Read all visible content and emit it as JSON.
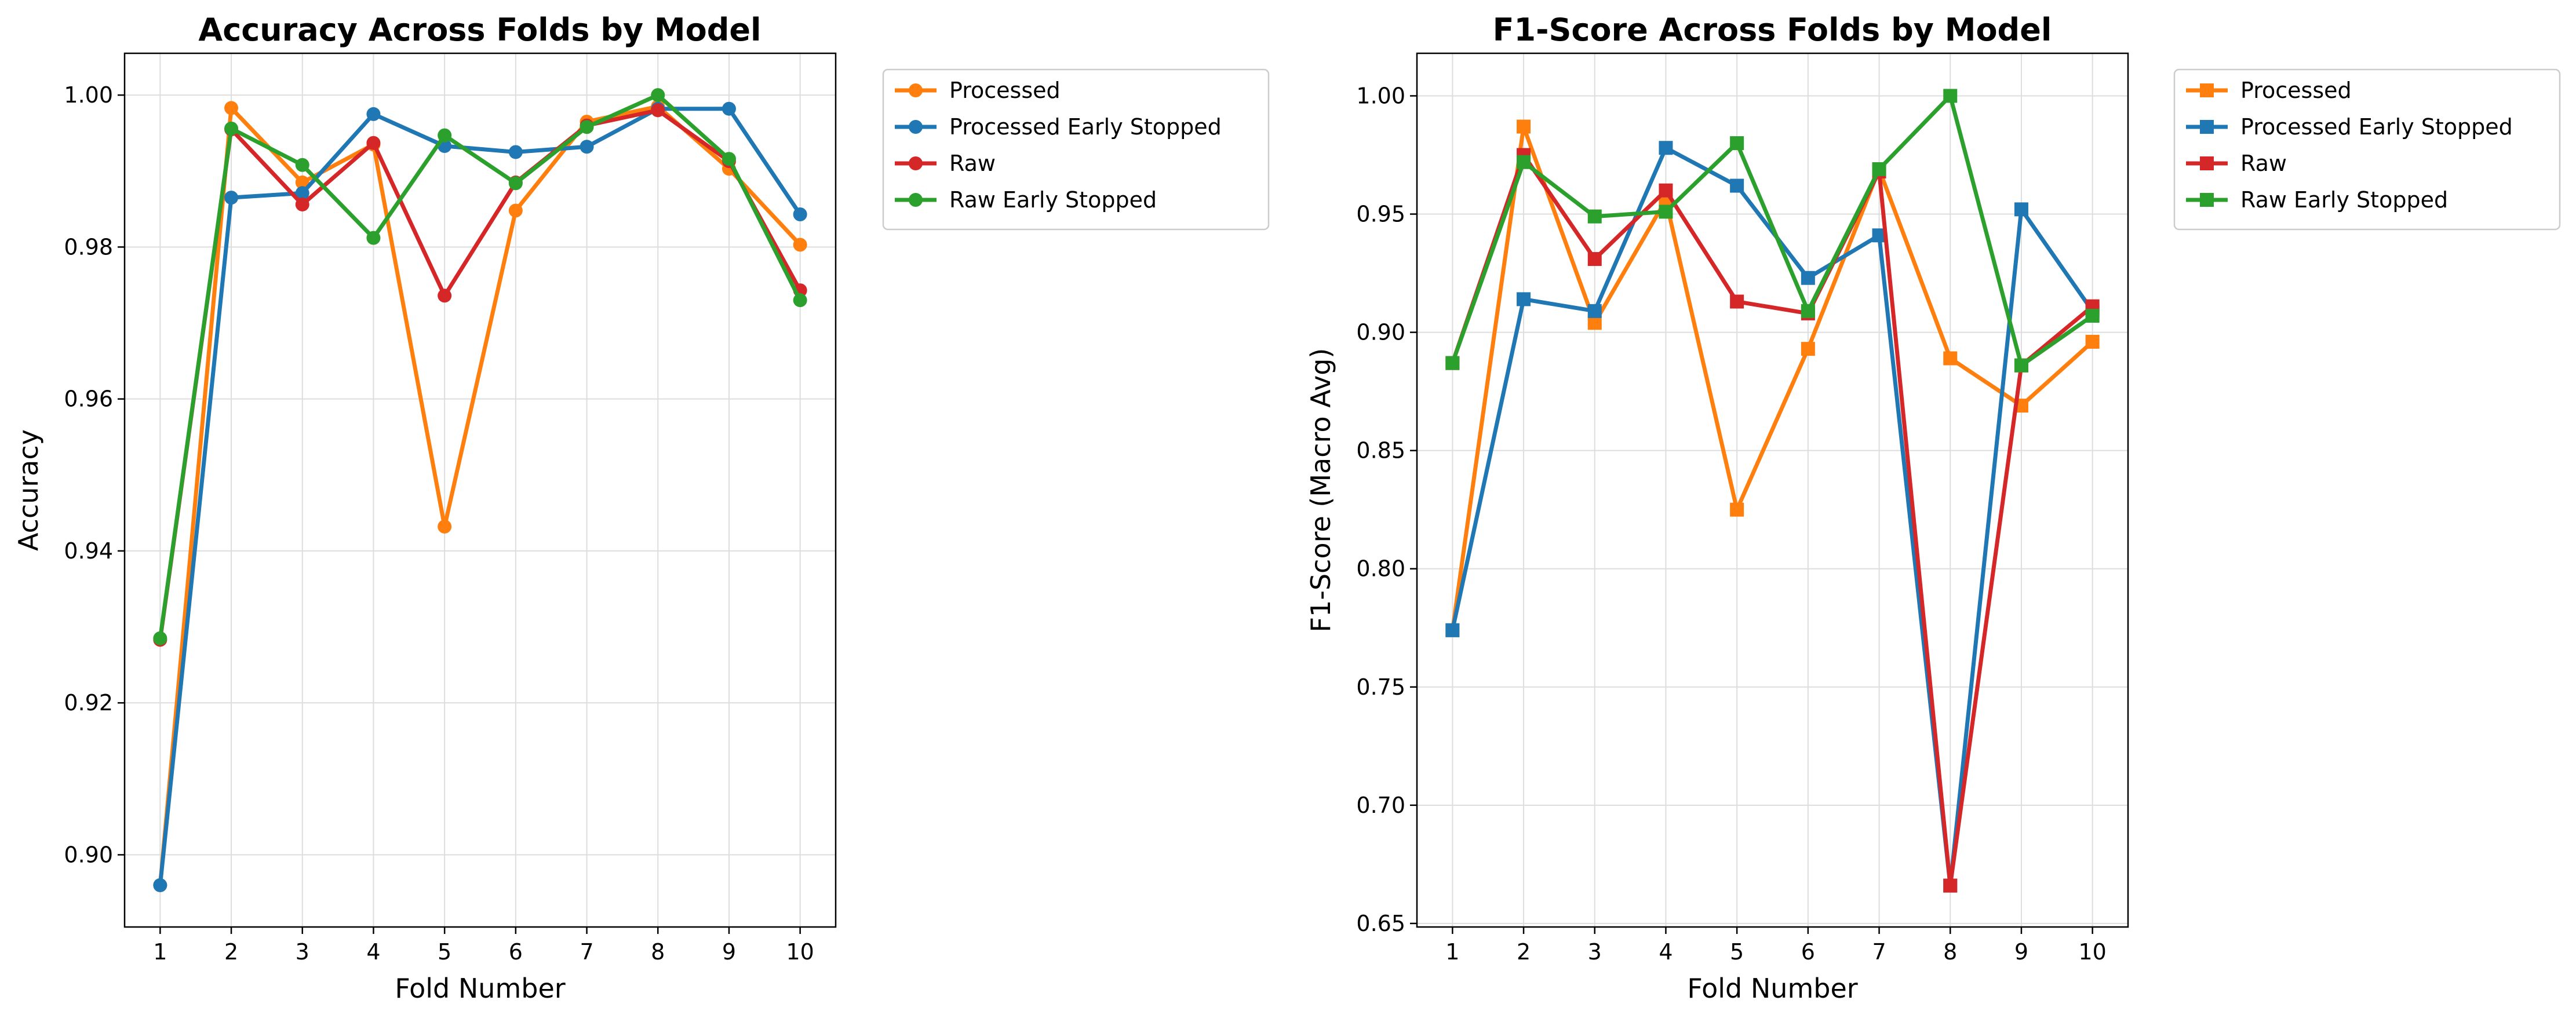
{
  "colors": {
    "Processed": "#ff7f0e",
    "Processed Early Stopped": "#1f77b4",
    "Raw": "#d62728",
    "Raw Early Stopped": "#2ca02c",
    "grid": "#dddddd"
  },
  "chart_data": [
    {
      "type": "line",
      "title": "Accuracy Across Folds by Model",
      "xlabel": "Fold Number",
      "ylabel": "Accuracy",
      "marker": "circle",
      "x": [
        1,
        2,
        3,
        4,
        5,
        6,
        7,
        8,
        9,
        10
      ],
      "xlim": [
        0.5,
        10.5
      ],
      "ylim": [
        0.8905,
        1.0055
      ],
      "yticks": [
        0.9,
        0.92,
        0.94,
        0.96,
        0.98,
        1.0
      ],
      "ytick_labels": [
        "0.90",
        "0.92",
        "0.94",
        "0.96",
        "0.98",
        "1.00"
      ],
      "grid": true,
      "legend_position": "outside-upper-right",
      "series": [
        {
          "name": "Processed",
          "values": [
            0.896,
            0.9983,
            0.9885,
            0.9935,
            0.9432,
            0.9848,
            0.9965,
            0.9985,
            0.9903,
            0.9803
          ]
        },
        {
          "name": "Processed Early Stopped",
          "values": [
            0.896,
            0.9865,
            0.9871,
            0.9975,
            0.9933,
            0.9925,
            0.9932,
            0.9982,
            0.9982,
            0.9843
          ]
        },
        {
          "name": "Raw",
          "values": [
            0.9283,
            0.9955,
            0.9856,
            0.9937,
            0.9736,
            0.9885,
            0.996,
            0.998,
            0.9913,
            0.9743
          ]
        },
        {
          "name": "Raw Early Stopped",
          "values": [
            0.9285,
            0.9956,
            0.9908,
            0.9812,
            0.9947,
            0.9884,
            0.9958,
            1.0,
            0.9916,
            0.973
          ]
        }
      ]
    },
    {
      "type": "line",
      "title": "F1-Score Across Folds by Model",
      "xlabel": "Fold Number",
      "ylabel": "F1-Score (Macro Avg)",
      "marker": "square",
      "x": [
        1,
        2,
        3,
        4,
        5,
        6,
        7,
        8,
        9,
        10
      ],
      "xlim": [
        0.5,
        10.5
      ],
      "ylim": [
        0.6485,
        1.018
      ],
      "yticks": [
        0.65,
        0.7,
        0.75,
        0.8,
        0.85,
        0.9,
        0.95,
        1.0
      ],
      "ytick_labels": [
        "0.65",
        "0.70",
        "0.75",
        "0.80",
        "0.85",
        "0.90",
        "0.95",
        "1.00"
      ],
      "grid": true,
      "legend_position": "outside-upper-right",
      "series": [
        {
          "name": "Processed",
          "values": [
            0.774,
            0.987,
            0.904,
            0.956,
            0.825,
            0.893,
            0.969,
            0.889,
            0.869,
            0.896
          ]
        },
        {
          "name": "Processed Early Stopped",
          "values": [
            0.774,
            0.914,
            0.909,
            0.978,
            0.962,
            0.923,
            0.941,
            0.666,
            0.952,
            0.909
          ]
        },
        {
          "name": "Raw",
          "values": [
            0.887,
            0.975,
            0.931,
            0.96,
            0.913,
            0.908,
            0.968,
            0.666,
            0.886,
            0.911
          ]
        },
        {
          "name": "Raw Early Stopped",
          "values": [
            0.887,
            0.972,
            0.949,
            0.951,
            0.98,
            0.909,
            0.969,
            1.0,
            0.886,
            0.907
          ]
        }
      ]
    }
  ]
}
